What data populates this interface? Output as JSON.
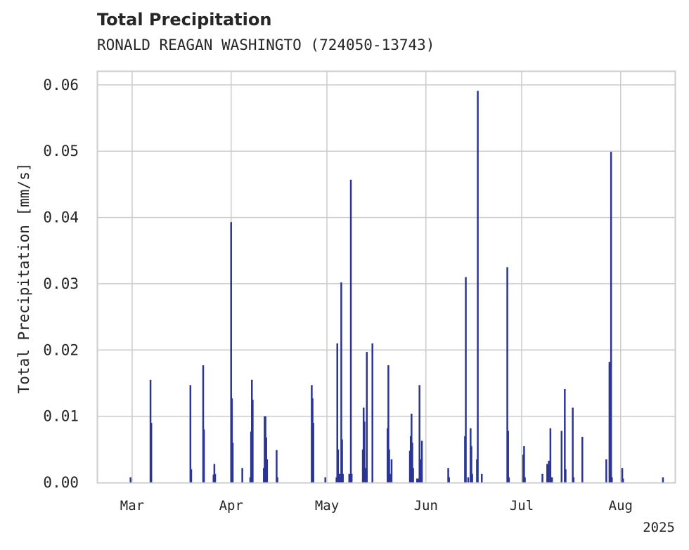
{
  "chart_data": {
    "type": "bar",
    "title": "Total Precipitation",
    "subtitle": "RONALD REAGAN WASHINGTO (724050-13743)",
    "ylabel": "Total Precipitation [mm/s]",
    "xlabel": "",
    "ylim": [
      0,
      0.062
    ],
    "yticks": [
      "0.00",
      "0.01",
      "0.02",
      "0.03",
      "0.04",
      "0.05",
      "0.06"
    ],
    "xticks": [
      {
        "label": "Mar",
        "date": "2025-03-01"
      },
      {
        "label": "Apr",
        "date": "2025-04-01"
      },
      {
        "label": "May",
        "date": "2025-05-01"
      },
      {
        "label": "Jun",
        "date": "2025-06-01"
      },
      {
        "label": "Jul",
        "date": "2025-07-01"
      },
      {
        "label": "Aug",
        "date": "2025-08-01"
      }
    ],
    "year_label": "2025",
    "xlim": [
      "2025-02-18",
      "2025-08-18"
    ],
    "grid": true,
    "bar_color": "#2b3594",
    "points": [
      [
        "2025-02-28T12",
        0.0008
      ],
      [
        "2025-03-06T18",
        0.0155
      ],
      [
        "2025-03-07T00",
        0.009
      ],
      [
        "2025-03-19T06",
        0.0147
      ],
      [
        "2025-03-19T12",
        0.002
      ],
      [
        "2025-03-23T06",
        0.0177
      ],
      [
        "2025-03-23T12",
        0.008
      ],
      [
        "2025-03-26T12",
        0.0012
      ],
      [
        "2025-03-26T18",
        0.0028
      ],
      [
        "2025-03-27T00",
        0.0013
      ],
      [
        "2025-04-01T00",
        0.0393
      ],
      [
        "2025-04-01T06",
        0.0127
      ],
      [
        "2025-04-01T12",
        0.006
      ],
      [
        "2025-04-04T12",
        0.0022
      ],
      [
        "2025-04-07T00",
        0.0008
      ],
      [
        "2025-04-07T06",
        0.0077
      ],
      [
        "2025-04-07T12",
        0.0155
      ],
      [
        "2025-04-07T18",
        0.0125
      ],
      [
        "2025-04-11T06",
        0.0022
      ],
      [
        "2025-04-11T12",
        0.01
      ],
      [
        "2025-04-11T18",
        0.01
      ],
      [
        "2025-04-12T00",
        0.0068
      ],
      [
        "2025-04-12T06",
        0.0035
      ],
      [
        "2025-04-15T06",
        0.0049
      ],
      [
        "2025-04-15T12",
        0.0008
      ],
      [
        "2025-04-26T06",
        0.0147
      ],
      [
        "2025-04-26T12",
        0.0127
      ],
      [
        "2025-04-26T18",
        0.009
      ],
      [
        "2025-04-30T12",
        0.0008
      ],
      [
        "2025-05-04T00",
        0.0008
      ],
      [
        "2025-05-04T06",
        0.021
      ],
      [
        "2025-05-04T12",
        0.005
      ],
      [
        "2025-05-05T00",
        0.0013
      ],
      [
        "2025-05-05T12",
        0.0302
      ],
      [
        "2025-05-05T18",
        0.0065
      ],
      [
        "2025-05-06T00",
        0.0013
      ],
      [
        "2025-05-08T00",
        0.0013
      ],
      [
        "2025-05-08T12",
        0.0457
      ],
      [
        "2025-05-08T18",
        0.0013
      ],
      [
        "2025-05-12T06",
        0.005
      ],
      [
        "2025-05-12T12",
        0.0113
      ],
      [
        "2025-05-12T18",
        0.0092
      ],
      [
        "2025-05-13T00",
        0.0022
      ],
      [
        "2025-05-13T12",
        0.0197
      ],
      [
        "2025-05-15T06",
        0.021
      ],
      [
        "2025-05-20T00",
        0.0082
      ],
      [
        "2025-05-20T06",
        0.0177
      ],
      [
        "2025-05-20T12",
        0.005
      ],
      [
        "2025-05-20T18",
        0.0013
      ],
      [
        "2025-05-21T06",
        0.0035
      ],
      [
        "2025-05-27T00",
        0.0048
      ],
      [
        "2025-05-27T06",
        0.007
      ],
      [
        "2025-05-27T12",
        0.0104
      ],
      [
        "2025-05-27T18",
        0.006
      ],
      [
        "2025-05-28T00",
        0.0022
      ],
      [
        "2025-05-29T06",
        0.0006
      ],
      [
        "2025-05-29T18",
        0.0006
      ],
      [
        "2025-05-30T00",
        0.0147
      ],
      [
        "2025-05-30T06",
        0.0035
      ],
      [
        "2025-05-30T18",
        0.0063
      ],
      [
        "2025-06-08T00",
        0.0022
      ],
      [
        "2025-06-08T06",
        0.0008
      ],
      [
        "2025-06-13T06",
        0.007
      ],
      [
        "2025-06-13T12",
        0.031
      ],
      [
        "2025-06-14T06",
        0.0008
      ],
      [
        "2025-06-15T00",
        0.0082
      ],
      [
        "2025-06-15T06",
        0.0055
      ],
      [
        "2025-06-15T12",
        0.0013
      ],
      [
        "2025-06-17T00",
        0.0035
      ],
      [
        "2025-06-17T06",
        0.0591
      ],
      [
        "2025-06-18T12",
        0.0013
      ],
      [
        "2025-06-26T12",
        0.0325
      ],
      [
        "2025-06-26T18",
        0.0078
      ],
      [
        "2025-06-27T00",
        0.0008
      ],
      [
        "2025-07-01T12",
        0.0042
      ],
      [
        "2025-07-01T18",
        0.0055
      ],
      [
        "2025-07-02T00",
        0.0008
      ],
      [
        "2025-07-07T12",
        0.0013
      ],
      [
        "2025-07-09T00",
        0.0028
      ],
      [
        "2025-07-09T12",
        0.0033
      ],
      [
        "2025-07-10T00",
        0.0082
      ],
      [
        "2025-07-10T12",
        0.0008
      ],
      [
        "2025-07-13T12",
        0.0078
      ],
      [
        "2025-07-14T12",
        0.0141
      ],
      [
        "2025-07-14T18",
        0.002
      ],
      [
        "2025-07-17T00",
        0.0113
      ],
      [
        "2025-07-17T06",
        0.0008
      ],
      [
        "2025-07-20T00",
        0.0069
      ],
      [
        "2025-07-27T12",
        0.0035
      ],
      [
        "2025-07-28T12",
        0.0182
      ],
      [
        "2025-07-28T18",
        0.0013
      ],
      [
        "2025-07-29T00",
        0.0499
      ],
      [
        "2025-07-29T06",
        0.0008
      ],
      [
        "2025-08-01T12",
        0.0022
      ],
      [
        "2025-08-01T18",
        0.0006
      ],
      [
        "2025-08-14T06",
        0.0008
      ]
    ]
  }
}
